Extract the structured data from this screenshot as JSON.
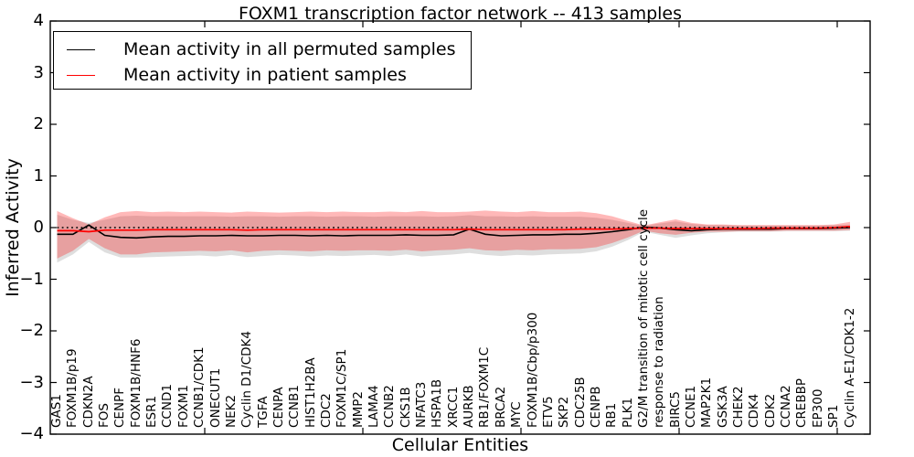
{
  "title": "FOXM1 transcription factor network -- 413 samples",
  "axes": {
    "ylabel": "Inferred Activity",
    "xlabel": "Cellular Entities"
  },
  "legend": {
    "items": [
      {
        "label": "Mean activity in all permuted samples",
        "color": "#000000"
      },
      {
        "label": "Mean activity in patient samples",
        "color": "#ff0000"
      }
    ]
  },
  "colors": {
    "permuted_line": "#000000",
    "patient_line": "#ff0000",
    "permuted_band": "rgba(0,0,0,0.13)",
    "patient_band": "rgba(255,0,0,0.28)",
    "zero_line": "#000000",
    "frame": "#000000"
  },
  "chart_data": {
    "type": "line",
    "title": "FOXM1 transcription factor network -- 413 samples",
    "xlabel": "Cellular Entities",
    "ylabel": "Inferred Activity",
    "ylim": [
      -4,
      4
    ],
    "yticks": [
      4,
      3,
      2,
      1,
      0,
      -1,
      -2,
      -3,
      -4
    ],
    "grid": false,
    "zero_line": 0,
    "legend_position": "upper left",
    "categories": [
      "GAS1",
      "FOXM1B/p19",
      "CDKN2A",
      "FOS",
      "CENPF",
      "FOXM1B/HNF6",
      "ESR1",
      "CCND1",
      "FOXM1",
      "CCNB1/CDK1",
      "ONECUT1",
      "NEK2",
      "Cyclin D1/CDK4",
      "TGFA",
      "CENPA",
      "CCNB1",
      "HIST1H2BA",
      "CDC2",
      "FOXM1C/SP1",
      "MMP2",
      "LAMA4",
      "CCNB2",
      "CKS1B",
      "NFATC3",
      "HSPA1B",
      "XRCC1",
      "AURKB",
      "RB1/FOXM1C",
      "BRCA2",
      "MYC",
      "FOXM1B/Cbp/p300",
      "ETV5",
      "SKP2",
      "CDC25B",
      "CENPB",
      "RB1",
      "PLK1",
      "G2/M transition of mitotic cell cycle",
      "response to radiation",
      "BIRC5",
      "CCNE1",
      "MAP2K1",
      "GSK3A",
      "CHEK2",
      "CDK4",
      "CDK2",
      "CCNA2",
      "CREBBP",
      "EP300",
      "SP1",
      "Cyclin A-E1/CDK1-2"
    ],
    "series": [
      {
        "name": "Mean activity in all permuted samples",
        "color": "#000000",
        "values": [
          -0.13,
          -0.13,
          0.05,
          -0.15,
          -0.19,
          -0.2,
          -0.18,
          -0.17,
          -0.17,
          -0.16,
          -0.16,
          -0.15,
          -0.16,
          -0.16,
          -0.15,
          -0.15,
          -0.16,
          -0.15,
          -0.16,
          -0.15,
          -0.15,
          -0.15,
          -0.14,
          -0.15,
          -0.15,
          -0.14,
          -0.03,
          -0.13,
          -0.16,
          -0.15,
          -0.14,
          -0.14,
          -0.13,
          -0.13,
          -0.11,
          -0.08,
          -0.04,
          0.01,
          -0.01,
          -0.04,
          -0.06,
          -0.04,
          -0.03,
          -0.03,
          -0.03,
          -0.03,
          -0.02,
          -0.02,
          -0.02,
          -0.01,
          0.0
        ]
      },
      {
        "name": "Mean activity in patient samples",
        "color": "#ff0000",
        "values": [
          -0.06,
          -0.06,
          -0.08,
          -0.05,
          -0.05,
          -0.05,
          -0.04,
          -0.04,
          -0.04,
          -0.04,
          -0.04,
          -0.04,
          -0.05,
          -0.04,
          -0.04,
          -0.04,
          -0.04,
          -0.04,
          -0.04,
          -0.04,
          -0.04,
          -0.04,
          -0.04,
          -0.04,
          -0.04,
          -0.04,
          -0.03,
          -0.04,
          -0.04,
          -0.04,
          -0.04,
          -0.04,
          -0.04,
          -0.03,
          -0.03,
          -0.03,
          -0.02,
          -0.01,
          -0.01,
          -0.02,
          -0.02,
          -0.02,
          -0.02,
          -0.02,
          -0.02,
          -0.01,
          -0.01,
          -0.01,
          -0.01,
          0.0,
          0.02
        ]
      }
    ],
    "bands": [
      {
        "name": "permuted-std-band",
        "color": "rgba(0,0,0,0.13)",
        "upper": [
          0.25,
          0.15,
          0.09,
          0.15,
          0.22,
          0.23,
          0.22,
          0.22,
          0.22,
          0.22,
          0.22,
          0.21,
          0.22,
          0.22,
          0.21,
          0.22,
          0.22,
          0.21,
          0.22,
          0.22,
          0.21,
          0.22,
          0.22,
          0.22,
          0.21,
          0.22,
          0.24,
          0.22,
          0.22,
          0.21,
          0.22,
          0.21,
          0.21,
          0.21,
          0.19,
          0.15,
          0.09,
          0.03,
          0.08,
          0.12,
          0.07,
          0.05,
          0.05,
          0.04,
          0.04,
          0.04,
          0.04,
          0.04,
          0.04,
          0.05,
          0.06
        ],
        "lower": [
          -0.68,
          -0.52,
          -0.28,
          -0.48,
          -0.58,
          -0.58,
          -0.57,
          -0.56,
          -0.55,
          -0.54,
          -0.56,
          -0.53,
          -0.57,
          -0.55,
          -0.53,
          -0.54,
          -0.56,
          -0.54,
          -0.55,
          -0.54,
          -0.53,
          -0.55,
          -0.52,
          -0.56,
          -0.54,
          -0.52,
          -0.49,
          -0.53,
          -0.55,
          -0.53,
          -0.54,
          -0.52,
          -0.51,
          -0.5,
          -0.46,
          -0.37,
          -0.24,
          -0.08,
          -0.14,
          -0.2,
          -0.15,
          -0.11,
          -0.09,
          -0.08,
          -0.08,
          -0.08,
          -0.07,
          -0.07,
          -0.07,
          -0.07,
          -0.06
        ]
      },
      {
        "name": "patient-std-band",
        "color": "rgba(255,0,0,0.28)",
        "upper": [
          0.32,
          0.18,
          0.06,
          0.2,
          0.3,
          0.32,
          0.3,
          0.31,
          0.3,
          0.31,
          0.3,
          0.29,
          0.31,
          0.3,
          0.29,
          0.3,
          0.31,
          0.3,
          0.31,
          0.3,
          0.3,
          0.31,
          0.3,
          0.32,
          0.3,
          0.3,
          0.31,
          0.33,
          0.31,
          0.3,
          0.32,
          0.3,
          0.3,
          0.31,
          0.28,
          0.22,
          0.13,
          0.04,
          0.1,
          0.16,
          0.09,
          0.06,
          0.06,
          0.05,
          0.05,
          0.05,
          0.05,
          0.05,
          0.05,
          0.06,
          0.11
        ],
        "lower": [
          -0.6,
          -0.45,
          -0.22,
          -0.4,
          -0.52,
          -0.52,
          -0.48,
          -0.47,
          -0.46,
          -0.45,
          -0.46,
          -0.44,
          -0.48,
          -0.45,
          -0.44,
          -0.45,
          -0.46,
          -0.44,
          -0.45,
          -0.44,
          -0.44,
          -0.45,
          -0.43,
          -0.46,
          -0.44,
          -0.43,
          -0.4,
          -0.44,
          -0.45,
          -0.43,
          -0.44,
          -0.42,
          -0.42,
          -0.41,
          -0.38,
          -0.3,
          -0.19,
          -0.06,
          -0.11,
          -0.14,
          -0.1,
          -0.08,
          -0.08,
          -0.07,
          -0.07,
          -0.07,
          -0.06,
          -0.06,
          -0.06,
          -0.06,
          -0.05
        ]
      }
    ]
  }
}
